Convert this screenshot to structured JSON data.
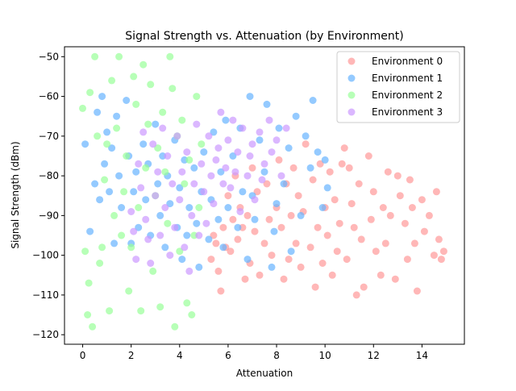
{
  "chart_data": {
    "type": "scatter",
    "title": "Signal Strength vs. Attenuation (by Environment)",
    "xlabel": "Attenuation",
    "ylabel": "Signal Strength (dBm)",
    "xlim": [
      -0.75,
      15.75
    ],
    "ylim": [
      -122.4,
      -47.5
    ],
    "xticks": [
      0,
      2,
      4,
      6,
      8,
      10,
      12,
      14
    ],
    "yticks": [
      -120,
      -110,
      -100,
      -90,
      -80,
      -70,
      -60,
      -50
    ],
    "grid": false,
    "legend": "top-right",
    "series": [
      {
        "name": "Environment 0",
        "color": "#ff9999",
        "points": [
          [
            5.3,
            -101
          ],
          [
            5.4,
            -95
          ],
          [
            5.5,
            -97
          ],
          [
            5.6,
            -104
          ],
          [
            5.7,
            -109
          ],
          [
            5.8,
            -93
          ],
          [
            5.9,
            -98
          ],
          [
            6.0,
            -85
          ],
          [
            6.1,
            -99
          ],
          [
            6.2,
            -91
          ],
          [
            6.3,
            -80
          ],
          [
            6.4,
            -96
          ],
          [
            6.5,
            -88
          ],
          [
            6.6,
            -93
          ],
          [
            6.7,
            -106
          ],
          [
            6.8,
            -90
          ],
          [
            6.9,
            -102
          ],
          [
            7.0,
            -78
          ],
          [
            7.1,
            -94
          ],
          [
            7.2,
            -84
          ],
          [
            7.3,
            -105
          ],
          [
            7.5,
            -97
          ],
          [
            7.6,
            -82
          ],
          [
            7.7,
            -91
          ],
          [
            7.8,
            -100
          ],
          [
            8.0,
            -88
          ],
          [
            8.1,
            -76
          ],
          [
            8.2,
            -93
          ],
          [
            8.3,
            -106
          ],
          [
            8.4,
            -82
          ],
          [
            8.5,
            -101
          ],
          [
            8.6,
            -90
          ],
          [
            8.7,
            -78
          ],
          [
            8.8,
            -97
          ],
          [
            8.9,
            -85
          ],
          [
            9.0,
            -103
          ],
          [
            9.1,
            -89
          ],
          [
            9.2,
            -72
          ],
          [
            9.4,
            -98
          ],
          [
            9.5,
            -81
          ],
          [
            9.6,
            -108
          ],
          [
            9.7,
            -93
          ],
          [
            9.8,
            -77
          ],
          [
            9.9,
            -102
          ],
          [
            10.0,
            -88
          ],
          [
            10.1,
            -95
          ],
          [
            10.2,
            -79
          ],
          [
            10.3,
            -105
          ],
          [
            10.4,
            -86
          ],
          [
            10.5,
            -99
          ],
          [
            10.6,
            -92
          ],
          [
            10.7,
            -77
          ],
          [
            10.8,
            -73
          ],
          [
            10.9,
            -101
          ],
          [
            11.0,
            -78
          ],
          [
            11.1,
            -87
          ],
          [
            11.2,
            -93
          ],
          [
            11.3,
            -110
          ],
          [
            11.4,
            -82
          ],
          [
            11.5,
            -96
          ],
          [
            11.6,
            -108
          ],
          [
            11.8,
            -75
          ],
          [
            11.9,
            -91
          ],
          [
            12.0,
            -84
          ],
          [
            12.1,
            -99
          ],
          [
            12.3,
            -105
          ],
          [
            12.4,
            -88
          ],
          [
            12.5,
            -97
          ],
          [
            12.6,
            -79
          ],
          [
            12.7,
            -90
          ],
          [
            12.9,
            -106
          ],
          [
            13.0,
            -80
          ],
          [
            13.1,
            -85
          ],
          [
            13.3,
            -92
          ],
          [
            13.4,
            -101
          ],
          [
            13.5,
            -81
          ],
          [
            13.6,
            -88
          ],
          [
            13.7,
            -97
          ],
          [
            13.8,
            -109
          ],
          [
            14.0,
            -86
          ],
          [
            14.1,
            -94
          ],
          [
            14.3,
            -90
          ],
          [
            14.5,
            -100
          ],
          [
            14.6,
            -84
          ],
          [
            14.7,
            -96
          ],
          [
            14.8,
            -101
          ],
          [
            14.9,
            -99
          ]
        ]
      },
      {
        "name": "Environment 1",
        "color": "#66b3ff",
        "points": [
          [
            0.1,
            -72
          ],
          [
            0.3,
            -94
          ],
          [
            0.5,
            -82
          ],
          [
            0.6,
            -64
          ],
          [
            0.7,
            -86
          ],
          [
            0.8,
            -60
          ],
          [
            0.9,
            -77
          ],
          [
            1.0,
            -69
          ],
          [
            1.1,
            -84
          ],
          [
            1.2,
            -73
          ],
          [
            1.3,
            -97
          ],
          [
            1.4,
            -65
          ],
          [
            1.5,
            -80
          ],
          [
            1.6,
            -88
          ],
          [
            1.8,
            -61
          ],
          [
            1.9,
            -75
          ],
          [
            2.0,
            -97
          ],
          [
            2.1,
            -84
          ],
          [
            2.2,
            -79
          ],
          [
            2.3,
            -93
          ],
          [
            2.5,
            -72
          ],
          [
            2.6,
            -86
          ],
          [
            2.7,
            -77
          ],
          [
            2.8,
            -95
          ],
          [
            3.0,
            -67
          ],
          [
            3.1,
            -82
          ],
          [
            3.2,
            -90
          ],
          [
            3.3,
            -75
          ],
          [
            3.4,
            -98
          ],
          [
            3.5,
            -80
          ],
          [
            3.6,
            -87
          ],
          [
            3.8,
            -71
          ],
          [
            3.9,
            -93
          ],
          [
            4.0,
            -83
          ],
          [
            4.1,
            -101
          ],
          [
            4.2,
            -76
          ],
          [
            4.3,
            -95
          ],
          [
            4.4,
            -88
          ],
          [
            4.6,
            -78
          ],
          [
            4.7,
            -92
          ],
          [
            4.8,
            -103
          ],
          [
            4.9,
            -84
          ],
          [
            5.0,
            -74
          ],
          [
            5.2,
            -96
          ],
          [
            5.3,
            -86
          ],
          [
            5.4,
            -69
          ],
          [
            5.6,
            -91
          ],
          [
            5.7,
            -79
          ],
          [
            5.8,
            -98
          ],
          [
            5.9,
            -66
          ],
          [
            6.0,
            -88
          ],
          [
            6.2,
            -75
          ],
          [
            6.4,
            -93
          ],
          [
            6.5,
            -68
          ],
          [
            6.6,
            -84
          ],
          [
            6.8,
            -101
          ],
          [
            6.9,
            -60
          ],
          [
            7.0,
            -85
          ],
          [
            7.1,
            -91
          ],
          [
            7.3,
            -71
          ],
          [
            7.5,
            -79
          ],
          [
            7.6,
            -62
          ],
          [
            7.8,
            -103
          ],
          [
            7.9,
            -94
          ],
          [
            8.0,
            -87
          ],
          [
            8.1,
            -68
          ],
          [
            8.3,
            -82
          ],
          [
            8.5,
            -73
          ],
          [
            8.6,
            -99
          ],
          [
            8.8,
            -65
          ],
          [
            9.0,
            -90
          ],
          [
            9.2,
            -70
          ],
          [
            9.4,
            -78
          ],
          [
            9.5,
            -61
          ],
          [
            9.7,
            -74
          ],
          [
            9.9,
            -88
          ],
          [
            10.0,
            -76
          ],
          [
            10.1,
            -83
          ]
        ]
      },
      {
        "name": "Environment 2",
        "color": "#99ff99",
        "points": [
          [
            0.0,
            -63
          ],
          [
            0.1,
            -99
          ],
          [
            0.2,
            -115
          ],
          [
            0.25,
            -107
          ],
          [
            0.3,
            -59
          ],
          [
            0.4,
            -118
          ],
          [
            0.5,
            -50
          ],
          [
            0.6,
            -70
          ],
          [
            0.7,
            -102
          ],
          [
            0.8,
            -98
          ],
          [
            0.9,
            -81
          ],
          [
            1.0,
            -72
          ],
          [
            1.1,
            -114
          ],
          [
            1.2,
            -56
          ],
          [
            1.3,
            -90
          ],
          [
            1.4,
            -68
          ],
          [
            1.5,
            -50
          ],
          [
            1.6,
            -95
          ],
          [
            1.7,
            -84
          ],
          [
            1.8,
            -75
          ],
          [
            1.9,
            -109
          ],
          [
            2.0,
            -98
          ],
          [
            2.1,
            -55
          ],
          [
            2.2,
            -62
          ],
          [
            2.3,
            -88
          ],
          [
            2.4,
            -114
          ],
          [
            2.5,
            -52
          ],
          [
            2.6,
            -78
          ],
          [
            2.7,
            -67
          ],
          [
            2.8,
            -57
          ],
          [
            2.9,
            -104
          ],
          [
            3.0,
            -85
          ],
          [
            3.1,
            -73
          ],
          [
            3.2,
            -113
          ],
          [
            3.3,
            -64
          ],
          [
            3.4,
            -79
          ],
          [
            3.5,
            -92
          ],
          [
            3.6,
            -50
          ],
          [
            3.7,
            -58
          ],
          [
            3.8,
            -118
          ],
          [
            3.9,
            -70
          ],
          [
            4.0,
            -99
          ],
          [
            4.1,
            -66
          ],
          [
            4.2,
            -82
          ],
          [
            4.3,
            -112
          ],
          [
            4.4,
            -76
          ],
          [
            4.5,
            -115
          ],
          [
            4.6,
            -95
          ],
          [
            4.7,
            -60
          ],
          [
            4.8,
            -88
          ],
          [
            4.9,
            -72
          ]
        ]
      },
      {
        "name": "Environment 3",
        "color": "#cc99ff",
        "points": [
          [
            2.0,
            -89
          ],
          [
            2.1,
            -94
          ],
          [
            2.2,
            -101
          ],
          [
            2.3,
            -77
          ],
          [
            2.4,
            -83
          ],
          [
            2.5,
            -69
          ],
          [
            2.6,
            -91
          ],
          [
            2.7,
            -96
          ],
          [
            2.8,
            -102
          ],
          [
            2.9,
            -72
          ],
          [
            3.0,
            -85
          ],
          [
            3.1,
            -79
          ],
          [
            3.2,
            -95
          ],
          [
            3.3,
            -68
          ],
          [
            3.4,
            -88
          ],
          [
            3.5,
            -75
          ],
          [
            3.6,
            -100
          ],
          [
            3.7,
            -82
          ],
          [
            3.8,
            -93
          ],
          [
            3.9,
            -70
          ],
          [
            4.0,
            -86
          ],
          [
            4.1,
            -79
          ],
          [
            4.2,
            -98
          ],
          [
            4.3,
            -74
          ],
          [
            4.4,
            -104
          ],
          [
            4.5,
            -90
          ],
          [
            4.6,
            -82
          ],
          [
            4.7,
            -67
          ],
          [
            4.8,
            -95
          ],
          [
            4.9,
            -77
          ],
          [
            5.0,
            -84
          ],
          [
            5.1,
            -92
          ],
          [
            5.2,
            -70
          ],
          [
            5.3,
            -80
          ],
          [
            5.4,
            -87
          ],
          [
            5.5,
            -76
          ],
          [
            5.6,
            -73
          ],
          [
            5.7,
            -64
          ],
          [
            5.8,
            -82
          ],
          [
            5.9,
            -78
          ],
          [
            6.0,
            -71
          ],
          [
            6.1,
            -83
          ],
          [
            6.2,
            -66
          ],
          [
            6.3,
            -79
          ],
          [
            6.4,
            -74
          ],
          [
            6.5,
            -89
          ],
          [
            6.6,
            -68
          ],
          [
            6.8,
            -80
          ],
          [
            6.9,
            -75
          ],
          [
            7.0,
            -72
          ],
          [
            7.1,
            -86
          ],
          [
            7.3,
            -69
          ],
          [
            7.4,
            -81
          ],
          [
            7.5,
            -77
          ],
          [
            7.7,
            -66
          ],
          [
            7.8,
            -74
          ],
          [
            8.0,
            -71
          ],
          [
            8.2,
            -80
          ],
          [
            8.4,
            -68
          ]
        ]
      }
    ]
  }
}
